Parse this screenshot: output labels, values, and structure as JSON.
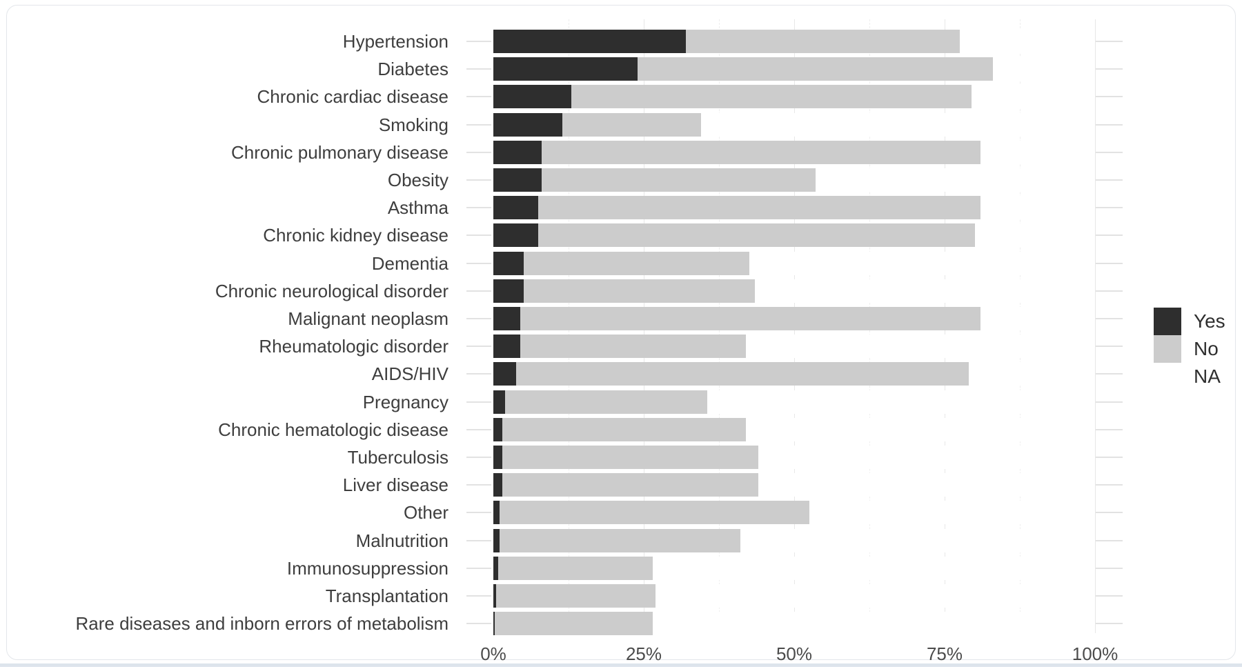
{
  "chart_data": {
    "type": "bar",
    "orientation": "horizontal",
    "stacked": true,
    "title": "",
    "xlabel": "",
    "ylabel": "",
    "xlim": [
      0,
      100
    ],
    "x_ticks": [
      "0%",
      "25%",
      "50%",
      "75%",
      "100%"
    ],
    "x_tick_values": [
      0,
      25,
      50,
      75,
      100
    ],
    "grid": "faint vertical gridlines every 12.5%",
    "categories": [
      "Hypertension",
      "Diabetes",
      "Chronic cardiac disease",
      "Smoking",
      "Chronic pulmonary disease",
      "Obesity",
      "Asthma",
      "Chronic kidney disease",
      "Dementia",
      "Chronic neurological disorder",
      "Malignant neoplasm",
      "Rheumatologic disorder",
      "AIDS/HIV",
      "Pregnancy",
      "Chronic hematologic disease",
      "Tuberculosis",
      "Liver disease",
      "Other",
      "Malnutrition",
      "Immunosuppression",
      "Transplantation",
      "Rare diseases and inborn errors of metabolism"
    ],
    "series": [
      {
        "name": "Yes",
        "color": "#2e2e2e",
        "values": [
          32,
          24,
          13,
          11.5,
          8,
          8,
          7.5,
          7.5,
          5,
          5,
          4.5,
          4.5,
          3.8,
          2,
          1.5,
          1.5,
          1.5,
          1,
          1,
          0.8,
          0.5,
          0.2
        ]
      },
      {
        "name": "No",
        "color": "#cccccc",
        "values": [
          45.5,
          59,
          66.5,
          23,
          73,
          45.5,
          73.5,
          72.5,
          37.5,
          38.5,
          76.5,
          37.5,
          75.2,
          33.5,
          40.5,
          42.5,
          42.5,
          51.5,
          40,
          25.7,
          26.5,
          26.3
        ]
      },
      {
        "name": "NA",
        "color": "#ffffff",
        "values": [
          22.5,
          17,
          20.5,
          65.5,
          19,
          46.5,
          19,
          20,
          57.5,
          56.5,
          19,
          58,
          21,
          64.5,
          58,
          56,
          56,
          47.5,
          59,
          73.5,
          73,
          73.5
        ]
      }
    ],
    "legend": {
      "position": "right",
      "entries": [
        {
          "label": "Yes",
          "color": "#2e2e2e"
        },
        {
          "label": "No",
          "color": "#cccccc"
        },
        {
          "label": "NA",
          "color": "#ffffff"
        }
      ]
    }
  }
}
